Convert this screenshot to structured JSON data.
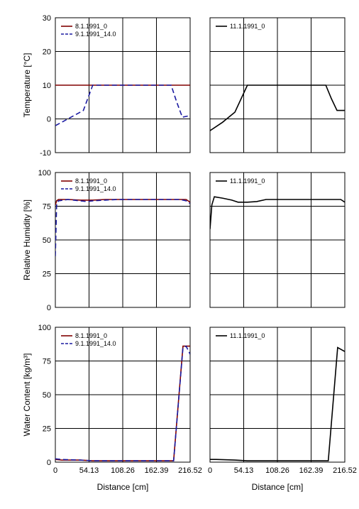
{
  "colors": {
    "series_red": "#800000",
    "series_blue": "#1a1aa0",
    "series_black": "#000000",
    "grid": "#000000"
  },
  "xlabel": "Distance [cm]",
  "x_ticks": [
    "0",
    "54.13",
    "108.26",
    "162.39",
    "216.52"
  ],
  "chart_data": [
    {
      "type": "line",
      "row": 0,
      "col": 0,
      "ylabel": "Temperature [°C]",
      "ylim": [
        -10,
        30
      ],
      "y_ticks": [
        "-10",
        "0",
        "10",
        "20",
        "30"
      ],
      "xlim": [
        0,
        216.52
      ],
      "grid": true,
      "legend_placement": "top-left",
      "series": [
        {
          "name": "8.1.1991_0",
          "color": "#800000",
          "dash": "solid",
          "x": [
            0,
            216.52
          ],
          "y": [
            10,
            10
          ]
        },
        {
          "name": "9.1.1991_14.0",
          "color": "#1a1aa0",
          "dash": "dashed",
          "x": [
            0,
            15,
            30,
            45,
            60,
            165,
            175,
            186,
            195,
            204,
            216.52
          ],
          "y": [
            -2,
            -0.5,
            1,
            2.5,
            10,
            10,
            10,
            10,
            5,
            0.5,
            1
          ]
        }
      ]
    },
    {
      "type": "line",
      "row": 0,
      "col": 1,
      "ylabel": "",
      "ylim": [
        -10,
        30
      ],
      "y_ticks": [],
      "xlim": [
        0,
        216.52
      ],
      "grid": true,
      "legend_placement": "top-left",
      "series": [
        {
          "name": "11.1.1991_0",
          "color": "#000000",
          "dash": "solid",
          "x": [
            0,
            20,
            40,
            60,
            165,
            175,
            186,
            195,
            204,
            216.52
          ],
          "y": [
            -3.5,
            -1,
            2,
            10,
            10,
            10,
            10,
            6,
            2.5,
            2.5
          ]
        }
      ]
    },
    {
      "type": "line",
      "row": 1,
      "col": 0,
      "ylabel": "Relative Humidity [%]",
      "ylim": [
        0,
        100
      ],
      "y_ticks": [
        "0",
        "25",
        "50",
        "75",
        "100"
      ],
      "xlim": [
        0,
        216.52
      ],
      "grid": true,
      "legend_placement": "top-left",
      "series": [
        {
          "name": "8.1.1991_0",
          "color": "#800000",
          "dash": "solid",
          "x": [
            0,
            2,
            5,
            20,
            40,
            50,
            60,
            80,
            100,
            150,
            200,
            210,
            216.52
          ],
          "y": [
            76,
            79,
            80,
            80,
            79.5,
            79.5,
            79.5,
            80,
            80,
            80,
            80,
            80,
            78
          ]
        },
        {
          "name": "9.1.1991_14.0",
          "color": "#1a1aa0",
          "dash": "dashed",
          "x": [
            0,
            2,
            5,
            20,
            40,
            50,
            60,
            80,
            100,
            150,
            200,
            210,
            216.52
          ],
          "y": [
            38,
            76,
            79,
            80,
            79,
            78.5,
            79,
            79.5,
            80,
            80,
            80,
            79,
            77
          ]
        }
      ]
    },
    {
      "type": "line",
      "row": 1,
      "col": 1,
      "ylabel": "",
      "ylim": [
        0,
        100
      ],
      "y_ticks": [],
      "xlim": [
        0,
        216.52
      ],
      "grid": true,
      "legend_placement": "top-left",
      "series": [
        {
          "name": "11.1.1991_0",
          "color": "#000000",
          "dash": "solid",
          "x": [
            0,
            3,
            7,
            20,
            35,
            45,
            60,
            75,
            90,
            150,
            200,
            210,
            216.52
          ],
          "y": [
            58,
            76,
            82,
            81,
            79.5,
            78,
            78,
            78.5,
            80,
            80,
            80,
            80,
            78
          ]
        }
      ]
    },
    {
      "type": "line",
      "row": 2,
      "col": 0,
      "ylabel": "Water Content [kg/m³]",
      "ylim": [
        0,
        100
      ],
      "y_ticks": [
        "0",
        "25",
        "50",
        "75",
        "100"
      ],
      "xlim": [
        0,
        216.52
      ],
      "grid": true,
      "legend_placement": "top-left",
      "series": [
        {
          "name": "8.1.1991_0",
          "color": "#800000",
          "dash": "solid",
          "x": [
            0,
            10,
            40,
            60,
            100,
            190,
            205,
            216.52
          ],
          "y": [
            2,
            1.5,
            1.5,
            1,
            1,
            1,
            86,
            86
          ]
        },
        {
          "name": "9.1.1991_14.0",
          "color": "#1a1aa0",
          "dash": "dashed",
          "x": [
            0,
            10,
            40,
            60,
            100,
            190,
            205,
            210,
            216.52
          ],
          "y": [
            2.5,
            2,
            1.5,
            1,
            1,
            1,
            85,
            86,
            80
          ]
        }
      ]
    },
    {
      "type": "line",
      "row": 2,
      "col": 1,
      "ylabel": "",
      "ylim": [
        0,
        100
      ],
      "y_ticks": [],
      "xlim": [
        0,
        216.52
      ],
      "grid": true,
      "legend_placement": "top-left",
      "series": [
        {
          "name": "11.1.1991_0",
          "color": "#000000",
          "dash": "solid",
          "x": [
            0,
            10,
            40,
            60,
            100,
            190,
            205,
            216.52
          ],
          "y": [
            2,
            2,
            1.5,
            1,
            1,
            1,
            85,
            82
          ]
        }
      ]
    }
  ]
}
